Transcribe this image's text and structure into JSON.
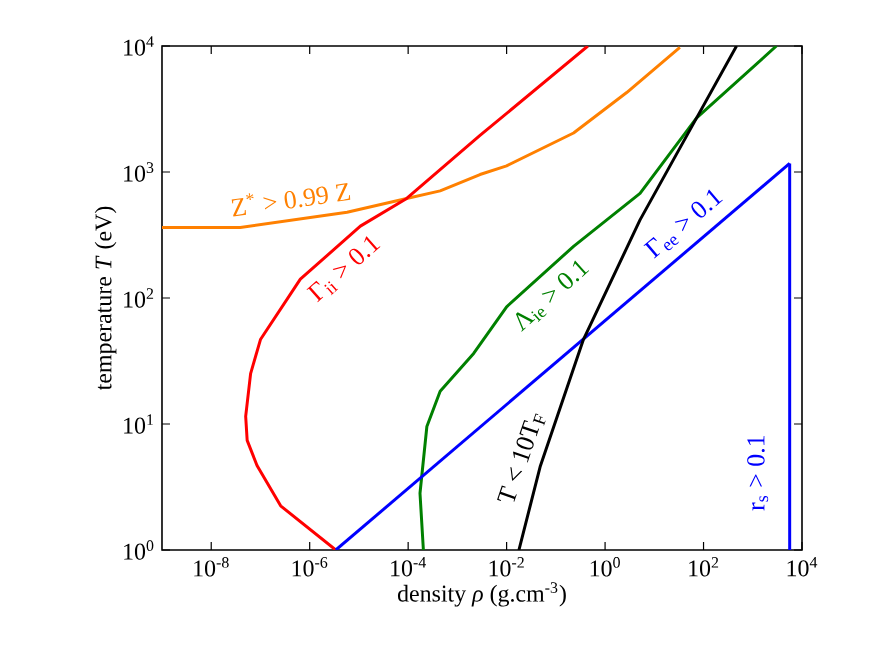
{
  "chart_data": {
    "type": "line",
    "xlabel": "density *ρ* (g.cm$^{-3}$)",
    "ylabel": "temperature *T* (eV)",
    "log": "xy",
    "grid": false,
    "legend": false,
    "xlim": [
      1e-09,
      10000
    ],
    "ylim": [
      1,
      10000
    ],
    "xticks": [
      {
        "value": 1e-08,
        "label": "10$^{-8}$"
      },
      {
        "value": 1e-06,
        "label": "10$^{-6}$"
      },
      {
        "value": 0.0001,
        "label": "10$^{-4}$"
      },
      {
        "value": 0.01,
        "label": "10$^{-2}$"
      },
      {
        "value": 1,
        "label": "10$^{0}$"
      },
      {
        "value": 100,
        "label": "10$^{2}$"
      },
      {
        "value": 10000,
        "label": "10$^{4}$"
      }
    ],
    "yticks": [
      {
        "value": 1,
        "label": "10$^{0}$"
      },
      {
        "value": 10,
        "label": "10$^{1}$"
      },
      {
        "value": 100,
        "label": "10$^{2}$"
      },
      {
        "value": 1000,
        "label": "10$^{3}$"
      },
      {
        "value": 10000,
        "label": "10$^{4}$"
      }
    ],
    "series": [
      {
        "name": "Z$^{*}$ > 0.99 Z",
        "color": "#ff8000",
        "x": [
          1e-09,
          3.89e-08,
          5.75e-06,
          9.33e-05,
          0.000447,
          0.00288,
          0.01,
          0.229,
          2.75,
          33.1
        ],
        "values": [
          363,
          363,
          479,
          617,
          708,
          955,
          1120,
          2040,
          4270,
          9770
        ]
      },
      {
        "name": "Γ$_{ii}$ > 0.1",
        "color": "#ff0000",
        "x": [
          3.39e-06,
          2.57e-07,
          8.51e-08,
          5.37e-08,
          5.01e-08,
          6.31e-08,
          1e-07,
          6.46e-07,
          1.07e-05,
          9.33e-05,
          0.00288,
          0.447
        ],
        "values": [
          1,
          2.24,
          4.68,
          7.41,
          11.5,
          25.1,
          46.8,
          141,
          372,
          617,
          1950,
          10000
        ]
      },
      {
        "name": "Λ$_{ie}$ > 0.1",
        "color": "#008000",
        "x": [
          0.000204,
          0.000174,
          0.00024,
          0.000447,
          0.00214,
          0.01,
          0.229,
          5.13,
          72.4,
          3020
        ],
        "values": [
          1,
          2.82,
          9.55,
          18.2,
          36.3,
          85.1,
          257,
          676,
          2690,
          10000
        ]
      },
      {
        "name": "Γ$_{ee}$ > 0.1",
        "color": "#0000ff",
        "x": [
          3.39e-06,
          5620
        ],
        "values": [
          1,
          1170
        ]
      },
      {
        "name": "T < 10T$_{F}$",
        "color": "#000000",
        "x": [
          0.0178,
          0.0479,
          0.363,
          5.13,
          72.4,
          468
        ],
        "values": [
          1,
          4.57,
          46.8,
          417,
          2690,
          10000
        ]
      },
      {
        "name": "r$_{s}$ > 0.1",
        "color": "#0000ff",
        "x": [
          5620,
          5620
        ],
        "values": [
          1170,
          1
        ]
      }
    ]
  }
}
